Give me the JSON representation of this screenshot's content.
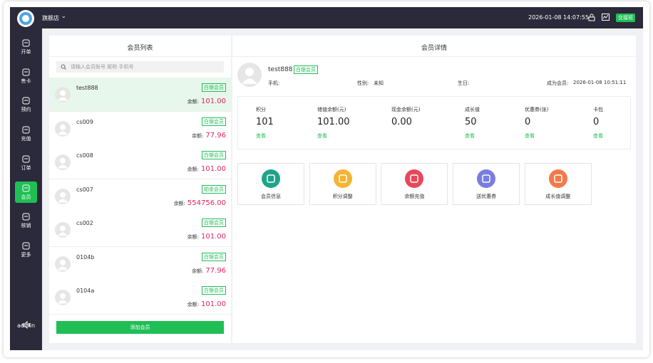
{
  "header": {
    "store": "旗舰店",
    "datetime": "2026-01-08 14:07:55",
    "shift_button": "交接班"
  },
  "sidebar": {
    "items": [
      "开单",
      "售卡",
      "预约",
      "充值",
      "订单",
      "会员",
      "核销",
      "更多"
    ],
    "user": "admin"
  },
  "member_list": {
    "title": "会员列表",
    "search_placeholder": "请输入会员账号 昵称 手机号",
    "balance_label": "余额:",
    "members": [
      {
        "name": "test888",
        "level": "白银会员",
        "balance": "101.00"
      },
      {
        "name": "cs009",
        "level": "白银会员",
        "balance": "77.96"
      },
      {
        "name": "cs008",
        "level": "白银会员",
        "balance": "101.00"
      },
      {
        "name": "cs007",
        "level": "铂金会员",
        "balance": "554756.00"
      },
      {
        "name": "cs002",
        "level": "白银会员",
        "balance": "101.00"
      },
      {
        "name": "0104b",
        "level": "白银会员",
        "balance": "77.96"
      },
      {
        "name": "0104a",
        "level": "白银会员",
        "balance": "101.00"
      }
    ],
    "add_button": "添加会员"
  },
  "member_detail": {
    "title": "会员详情",
    "name": "test888",
    "level": "白银会员",
    "phone_label": "手机:",
    "gender_label": "性别:",
    "gender": "未知",
    "birthday_label": "生日:",
    "join_label": "成为会员:",
    "join_date": "2026-01-08 10:51:11",
    "stats": [
      {
        "label": "积分",
        "value": "101",
        "link": "查看"
      },
      {
        "label": "储值余额(元)",
        "value": "101.00",
        "link": "查看"
      },
      {
        "label": "现金余额(元)",
        "value": "0.00"
      },
      {
        "label": "成长值",
        "value": "50",
        "link": "查看"
      },
      {
        "label": "优惠券(张)",
        "value": "0",
        "link": "查看"
      },
      {
        "label": "卡包",
        "value": "0",
        "link": "查看"
      }
    ],
    "actions": [
      "会员信息",
      "积分调整",
      "余额充值",
      "送优惠券",
      "成长值调整"
    ]
  }
}
